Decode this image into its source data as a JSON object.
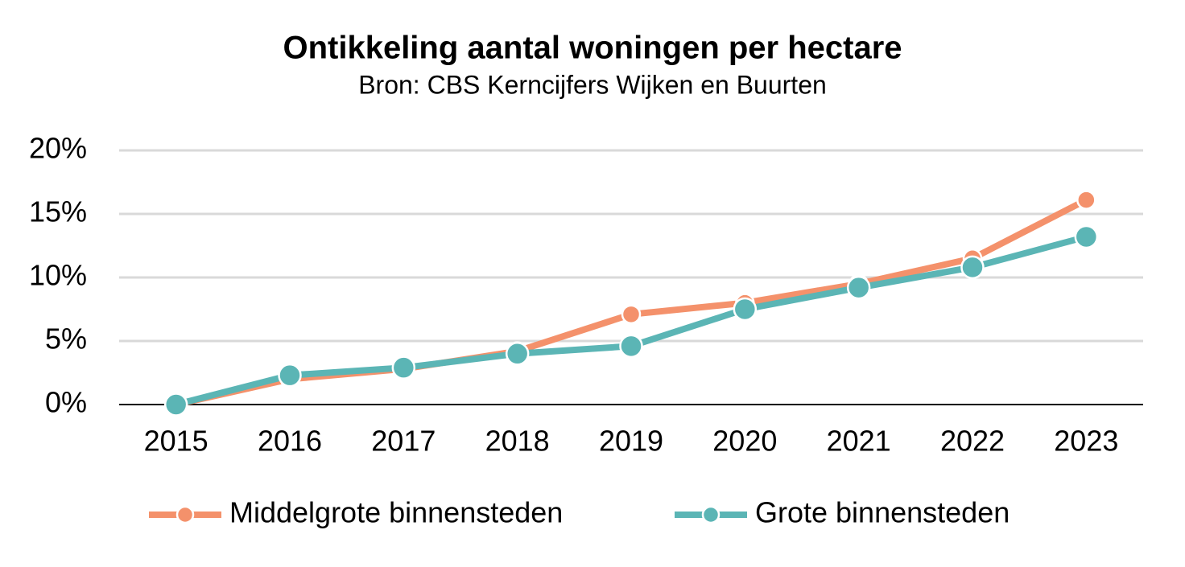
{
  "chart_data": {
    "type": "line",
    "title": "Ontikkeling aantal woningen per hectare",
    "subtitle": "Bron: CBS Kerncijfers Wijken en Buurten",
    "categories": [
      "2015",
      "2016",
      "2017",
      "2018",
      "2019",
      "2020",
      "2021",
      "2022",
      "2023"
    ],
    "series": [
      {
        "name": "Middelgrote binnensteden",
        "color": "#f4916b",
        "values": [
          0,
          2.0,
          2.8,
          4.2,
          7.1,
          8.0,
          9.5,
          11.5,
          16.1
        ]
      },
      {
        "name": "Grote binnensteden",
        "color": "#5bb5b5",
        "values": [
          0,
          2.3,
          2.9,
          4.0,
          4.6,
          7.5,
          9.2,
          10.8,
          13.2
        ]
      }
    ],
    "ylim": [
      0,
      20
    ],
    "yticks": [
      {
        "value": 0,
        "label": "0%"
      },
      {
        "value": 5,
        "label": "5%"
      },
      {
        "value": 10,
        "label": "10%"
      },
      {
        "value": 15,
        "label": "15%"
      },
      {
        "value": 20,
        "label": "20%"
      }
    ],
    "grid": true,
    "legend": "bottom"
  }
}
